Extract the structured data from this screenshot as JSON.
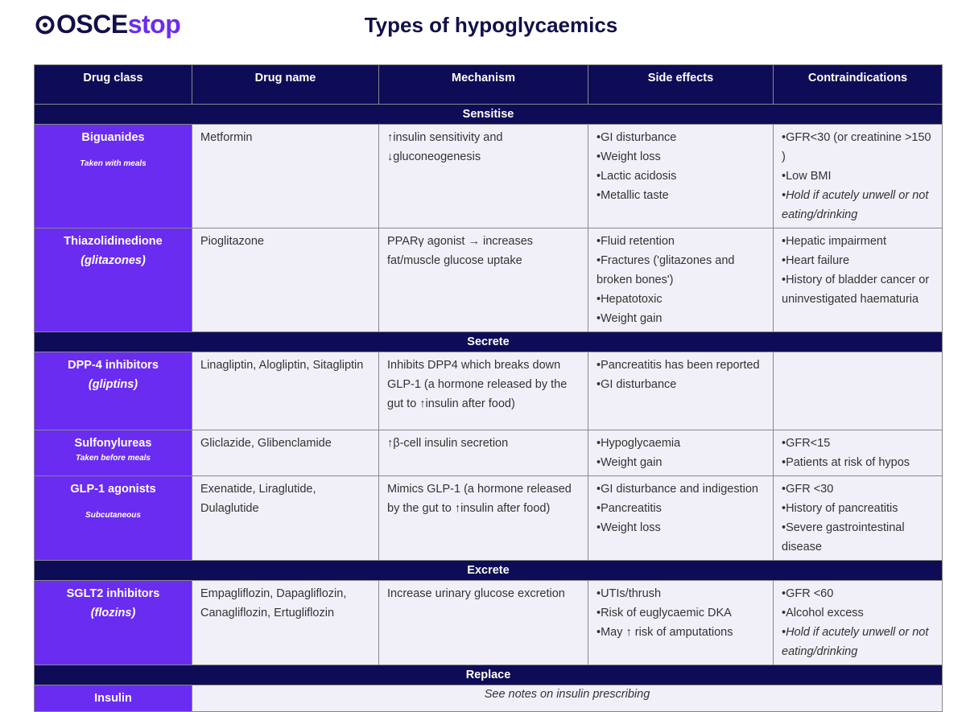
{
  "header": {
    "logo": {
      "main": "OSCE",
      "accent": "stop"
    },
    "title": "Types of hypoglycaemics"
  },
  "table": {
    "columns": [
      "Drug class",
      "Drug name",
      "Mechanism",
      "Side effects",
      "Contraindications"
    ],
    "sections": [
      {
        "title": "Sensitise",
        "rows": [
          {
            "class": {
              "name": "Biguanides",
              "note": "Taken with meals"
            },
            "drugs": [
              "Metformin"
            ],
            "mechanism": [
              "↑insulin sensitivity and ↓gluconeogenesis"
            ],
            "side_effects": [
              "•GI disturbance",
              "•Weight loss",
              "•Lactic acidosis",
              "•Metallic taste"
            ],
            "contraindications": [
              "•GFR<30 (or creatinine >150 )",
              "•Low BMI"
            ],
            "contraindication_note": "•Hold if acutely unwell or not eating/drinking"
          },
          {
            "class": {
              "name": "Thiazolidinedione",
              "alias": "(glitazones)"
            },
            "drugs": [
              "Pioglitazone"
            ],
            "mechanism": [
              "PPARγ agonist → increases fat/muscle glucose uptake"
            ],
            "side_effects": [
              "•Fluid retention",
              "•Fractures ('glitazones and broken bones')",
              "•Hepatotoxic",
              "•Weight gain"
            ],
            "contraindications": [
              "•Hepatic impairment",
              "•Heart failure",
              "•History of bladder cancer or uninvestigated haematuria"
            ]
          }
        ]
      },
      {
        "title": "Secrete",
        "rows": [
          {
            "class": {
              "name": "DPP-4 inhibitors",
              "alias": "(gliptins)"
            },
            "drugs": [
              "Linagliptin, Alogliptin, Sitagliptin"
            ],
            "mechanism": [
              "Inhibits DPP4 which breaks down GLP-1 (a hormone released by the gut to ↑insulin after food)"
            ],
            "side_effects": [
              "•Pancreatitis has been reported",
              "•GI disturbance"
            ],
            "contraindications": []
          },
          {
            "class": {
              "name": "Sulfonylureas",
              "note": "Taken before meals"
            },
            "drugs": [
              "Gliclazide, Glibenclamide"
            ],
            "mechanism": [
              "↑β-cell insulin secretion"
            ],
            "side_effects": [
              "•Hypoglycaemia",
              "•Weight gain"
            ],
            "contraindications": [
              "•GFR<15",
              "•Patients at risk of hypos"
            ]
          },
          {
            "class": {
              "name": "GLP-1 agonists",
              "note": "Subcutaneous"
            },
            "drugs": [
              "Exenatide, Liraglutide, Dulaglutide"
            ],
            "mechanism": [
              "Mimics GLP-1 (a hormone released by the gut to ↑insulin after food)"
            ],
            "side_effects": [
              "•GI disturbance and indigestion",
              "•Pancreatitis",
              "•Weight loss"
            ],
            "contraindications": [
              "•GFR <30",
              "•History of pancreatitis",
              "•Severe gastrointestinal disease"
            ]
          }
        ]
      },
      {
        "title": "Excrete",
        "rows": [
          {
            "class": {
              "name": "SGLT2 inhibitors",
              "alias": "(flozins)"
            },
            "drugs": [
              "Empagliflozin, Dapagliflozin, Canagliflozin, Ertugliflozin"
            ],
            "mechanism": [
              "Increase urinary glucose excretion"
            ],
            "side_effects": [
              "•UTIs/thrush",
              "•Risk of euglycaemic DKA",
              "•May ↑ risk of amputations"
            ],
            "contraindications": [
              "•GFR <60",
              "•Alcohol excess"
            ],
            "contraindication_note": "•Hold if acutely unwell or not eating/drinking"
          }
        ]
      },
      {
        "title": "Replace",
        "rows": [
          {
            "class": {
              "name": "Insulin"
            },
            "note": "See notes on insulin prescribing"
          }
        ]
      }
    ]
  }
}
